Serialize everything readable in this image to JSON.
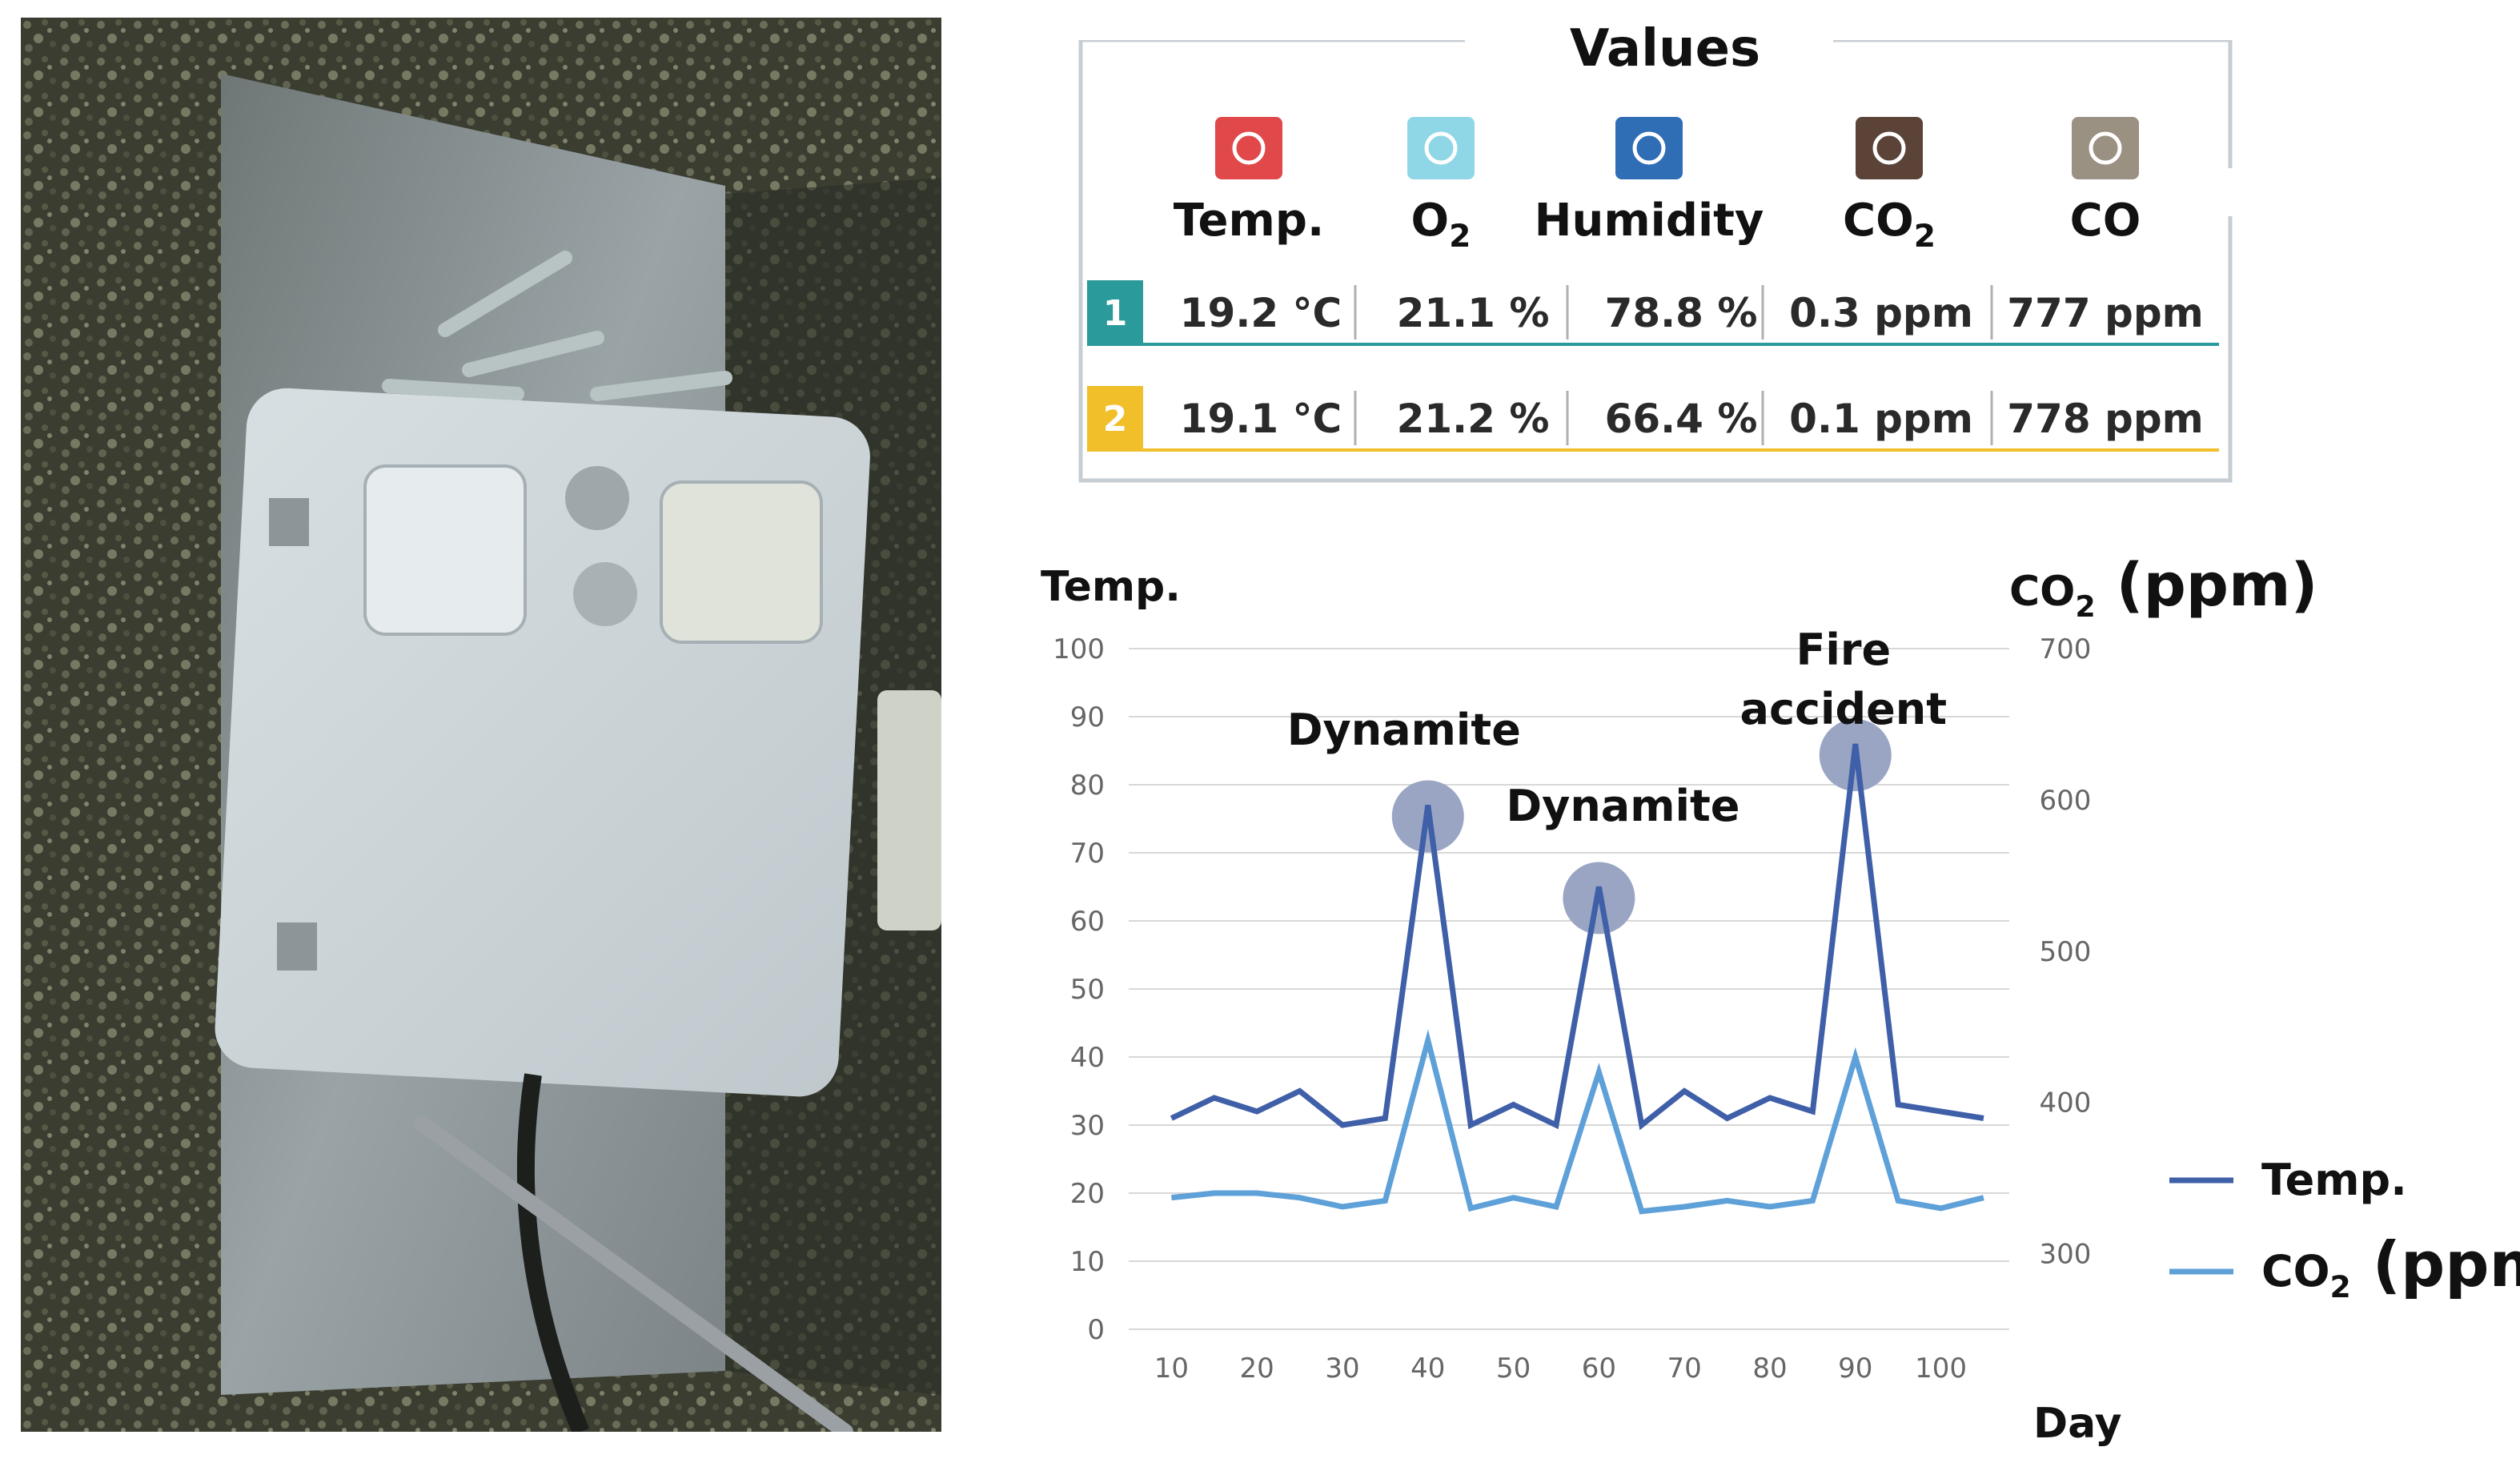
{
  "panel": {
    "title": "Values",
    "columns": [
      {
        "label": "Temp.",
        "icon": "thermometer-icon",
        "color": "#e0484a"
      },
      {
        "label": "O",
        "sub": "2",
        "icon": "oxygen-icon",
        "color": "#8fd7e6"
      },
      {
        "label": "Humidity",
        "icon": "water-drop-icon",
        "color": "#2f6db5"
      },
      {
        "label": "CO",
        "sub": "2",
        "icon": "co2-icon",
        "color": "#5b4337"
      },
      {
        "label": "CO",
        "icon": "co-icon",
        "color": "#9b9182"
      }
    ],
    "rows": [
      {
        "id": "1",
        "color": "#2b9a9a",
        "values": [
          "19.2 °C",
          "21.1 %",
          "78.8 %",
          "0.3 ppm",
          "777 ppm"
        ]
      },
      {
        "id": "2",
        "color": "#f1bf2a",
        "values": [
          "19.1 °C",
          "21.2 %",
          "66.4 %",
          "0.1 ppm",
          "778 ppm"
        ]
      }
    ]
  },
  "chart_data": {
    "type": "line",
    "xlabel": "Day",
    "ylabel_left": "Temp.",
    "ylabel_right": {
      "text": "CO",
      "sub": "2",
      "suffix": " (ppm)"
    },
    "x": [
      10,
      15,
      20,
      25,
      30,
      35,
      40,
      45,
      50,
      55,
      60,
      65,
      70,
      75,
      80,
      85,
      90,
      95,
      100,
      105
    ],
    "x_ticks": [
      10,
      20,
      30,
      40,
      50,
      60,
      70,
      80,
      90,
      100
    ],
    "y_left_range": [
      0,
      100
    ],
    "y_left_ticks": [
      0,
      10,
      20,
      30,
      40,
      50,
      60,
      70,
      80,
      90,
      100
    ],
    "y_right_range": [
      250,
      700
    ],
    "y_right_ticks": [
      300,
      400,
      500,
      600,
      700
    ],
    "series": [
      {
        "name": "Temp.",
        "axis": "left",
        "color": "#3f5fa8",
        "values": [
          31,
          34,
          32,
          35,
          30,
          31,
          77,
          30,
          33,
          30,
          65,
          30,
          35,
          31,
          34,
          32,
          86,
          33,
          32,
          31
        ]
      },
      {
        "name": "CO",
        "sub": "2",
        "suffix": " (ppm)",
        "axis": "right",
        "color": "#5ea0d8",
        "values": [
          337,
          340,
          340,
          337,
          331,
          335,
          441,
          330,
          337,
          331,
          420,
          328,
          331,
          335,
          331,
          335,
          430,
          335,
          330,
          337
        ]
      }
    ],
    "annotations": [
      {
        "lines": [
          "Dynamite"
        ],
        "x": 40,
        "y": 77
      },
      {
        "lines": [
          "Dynamite"
        ],
        "x": 60,
        "y": 65
      },
      {
        "lines": [
          "Fire",
          "accident"
        ],
        "x": 90,
        "y": 86
      }
    ],
    "marker_color": "#9aa5c4"
  }
}
